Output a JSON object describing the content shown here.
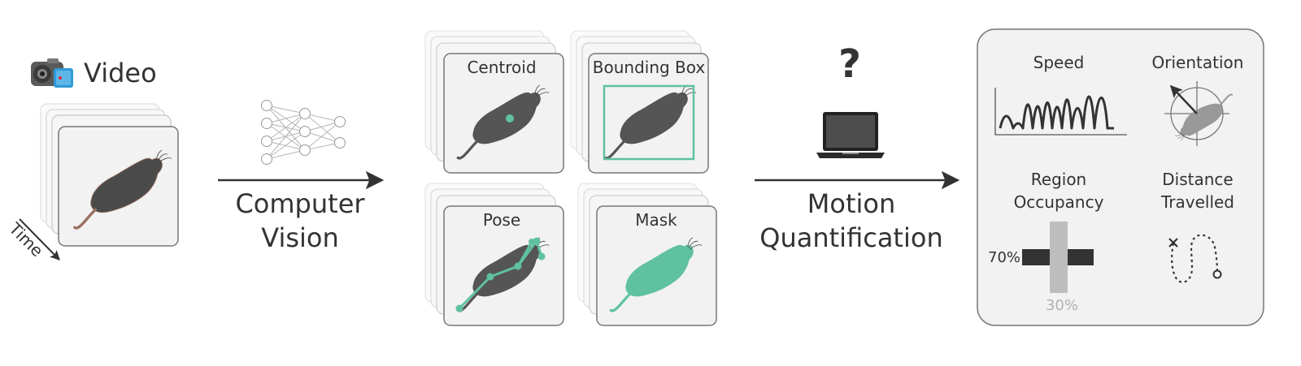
{
  "video": {
    "label": "Video",
    "time_label": "Time"
  },
  "cv_step": {
    "line1": "Computer",
    "line2": "Vision"
  },
  "cv_outputs": [
    {
      "label": "Centroid"
    },
    {
      "label": "Bounding Box"
    },
    {
      "label": "Pose"
    },
    {
      "label": "Mask"
    }
  ],
  "mq_step": {
    "question_mark": "?",
    "line1": "Motion",
    "line2": "Quantification"
  },
  "metrics": {
    "speed": "Speed",
    "orientation": "Orientation",
    "region_line1": "Region",
    "region_line2": "Occupancy",
    "distance_line1": "Distance",
    "distance_line2": "Travelled",
    "occupancy_horizontal": "70%",
    "occupancy_vertical": "30%"
  },
  "colors": {
    "accent": "#5fc1a0",
    "mouse": "#555555",
    "frame_fill": "#f2f2f2",
    "frame_stroke": "#777777",
    "arrow": "#333333",
    "occupancy_dark": "#333333",
    "occupancy_light": "#bdbdbd"
  }
}
